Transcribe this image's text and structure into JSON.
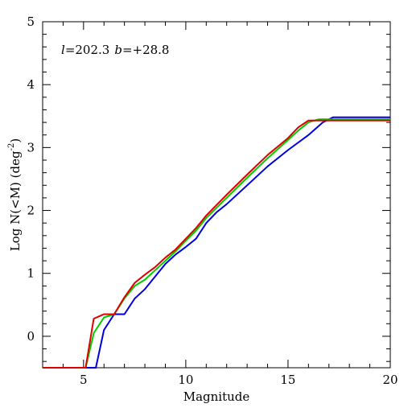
{
  "chart_data": {
    "type": "line",
    "xlabel": "Magnitude",
    "ylabel": "Log N(<M) (deg",
    "ylabel_sup": "-2",
    "ylabel_close": ")",
    "annotation": {
      "l_symbol": "l",
      "l_value": "=202.3",
      "b_symbol": "b",
      "b_value": "=+28.8"
    },
    "xlim": [
      3,
      20
    ],
    "ylim": [
      -0.5,
      5
    ],
    "xticks_major": [
      5,
      10,
      15,
      20
    ],
    "yticks_major": [
      0,
      1,
      2,
      3,
      4,
      5
    ],
    "grid": false,
    "legend": "none",
    "series": [
      {
        "color": "#0000dd",
        "points": [
          [
            3,
            -0.5
          ],
          [
            5.6,
            -0.5
          ],
          [
            6.0,
            0.1
          ],
          [
            6.5,
            0.35
          ],
          [
            7.0,
            0.35
          ],
          [
            7.5,
            0.6
          ],
          [
            8.0,
            0.75
          ],
          [
            8.5,
            0.95
          ],
          [
            9.0,
            1.15
          ],
          [
            9.5,
            1.3
          ],
          [
            10.0,
            1.42
          ],
          [
            10.5,
            1.55
          ],
          [
            11.0,
            1.8
          ],
          [
            11.5,
            1.97
          ],
          [
            12.0,
            2.1
          ],
          [
            13.0,
            2.4
          ],
          [
            14.0,
            2.7
          ],
          [
            15.0,
            2.96
          ],
          [
            16.0,
            3.2
          ],
          [
            16.7,
            3.4
          ],
          [
            17.2,
            3.48
          ],
          [
            20,
            3.48
          ]
        ]
      },
      {
        "color": "#00cc00",
        "points": [
          [
            3,
            -0.5
          ],
          [
            5.1,
            -0.5
          ],
          [
            5.5,
            0.05
          ],
          [
            6.0,
            0.3
          ],
          [
            6.5,
            0.35
          ],
          [
            7.0,
            0.6
          ],
          [
            7.5,
            0.8
          ],
          [
            8.0,
            0.9
          ],
          [
            8.5,
            1.05
          ],
          [
            9.0,
            1.2
          ],
          [
            9.5,
            1.35
          ],
          [
            10.0,
            1.52
          ],
          [
            10.5,
            1.68
          ],
          [
            11.0,
            1.88
          ],
          [
            12.0,
            2.2
          ],
          [
            13.0,
            2.52
          ],
          [
            14.0,
            2.83
          ],
          [
            15.0,
            3.12
          ],
          [
            15.5,
            3.27
          ],
          [
            16.0,
            3.4
          ],
          [
            16.5,
            3.45
          ],
          [
            20,
            3.45
          ]
        ]
      },
      {
        "color": "#dd0000",
        "points": [
          [
            3,
            -0.5
          ],
          [
            5.1,
            -0.5
          ],
          [
            5.5,
            0.28
          ],
          [
            6.0,
            0.35
          ],
          [
            6.5,
            0.35
          ],
          [
            7.0,
            0.62
          ],
          [
            7.5,
            0.85
          ],
          [
            8.0,
            0.98
          ],
          [
            8.5,
            1.1
          ],
          [
            9.0,
            1.25
          ],
          [
            9.5,
            1.38
          ],
          [
            10.0,
            1.55
          ],
          [
            10.5,
            1.72
          ],
          [
            11.0,
            1.92
          ],
          [
            12.0,
            2.25
          ],
          [
            13.0,
            2.57
          ],
          [
            14.0,
            2.88
          ],
          [
            15.0,
            3.15
          ],
          [
            15.5,
            3.32
          ],
          [
            16.0,
            3.43
          ],
          [
            20,
            3.43
          ]
        ]
      }
    ]
  }
}
